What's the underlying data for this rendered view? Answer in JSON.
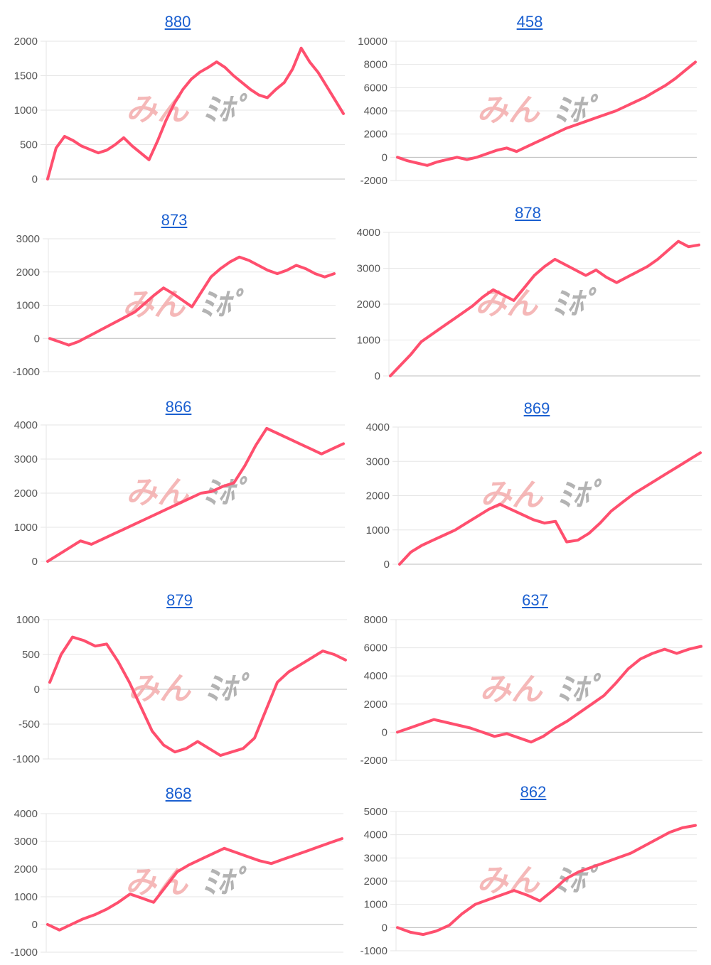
{
  "line_color": "#ff4f6e",
  "grid_color": "#e6e6e6",
  "zero_line_color": "#bdbdbd",
  "title_color": "#1a5fd0",
  "watermark": {
    "left_text": "みん",
    "right_text": "ﾐﾎﾟ",
    "left_color": "#f2a0a0",
    "right_color": "#9a9a9a"
  },
  "chart_data": [
    {
      "type": "line",
      "title": "880",
      "yticks": [
        0,
        500,
        1000,
        1500,
        2000
      ],
      "ylim": [
        0,
        2000
      ],
      "series": [
        {
          "values": [
            0,
            450,
            620,
            560,
            480,
            430,
            380,
            420,
            500,
            600,
            480,
            380,
            280,
            550,
            850,
            1100,
            1300,
            1450,
            1550,
            1620,
            1700,
            1620,
            1500,
            1400,
            1300,
            1220,
            1180,
            1300,
            1400,
            1600,
            1900,
            1700,
            1550,
            1350,
            1150,
            950
          ]
        }
      ]
    },
    {
      "type": "line",
      "title": "458",
      "yticks": [
        -2000,
        0,
        2000,
        4000,
        6000,
        8000,
        10000
      ],
      "ylim": [
        -2000,
        10000
      ],
      "series": [
        {
          "values": [
            0,
            -300,
            -500,
            -700,
            -400,
            -200,
            0,
            -200,
            0,
            300,
            600,
            800,
            500,
            900,
            1300,
            1700,
            2100,
            2500,
            2800,
            3100,
            3400,
            3700,
            4000,
            4400,
            4800,
            5200,
            5700,
            6200,
            6800,
            7500,
            8200
          ]
        }
      ]
    },
    {
      "type": "line",
      "title": "873",
      "yticks": [
        -1000,
        0,
        1000,
        2000,
        3000
      ],
      "ylim": [
        -1000,
        3000
      ],
      "series": [
        {
          "values": [
            0,
            -100,
            -200,
            -100,
            50,
            200,
            350,
            500,
            650,
            800,
            1050,
            1300,
            1520,
            1350,
            1150,
            950,
            1400,
            1850,
            2100,
            2300,
            2450,
            2350,
            2200,
            2050,
            1950,
            2050,
            2200,
            2100,
            1950,
            1850,
            1950
          ]
        }
      ]
    },
    {
      "type": "line",
      "title": "878",
      "yticks": [
        0,
        1000,
        2000,
        3000,
        4000
      ],
      "ylim": [
        0,
        4000
      ],
      "series": [
        {
          "values": [
            0,
            300,
            600,
            950,
            1150,
            1350,
            1550,
            1750,
            1950,
            2200,
            2400,
            2250,
            2100,
            2450,
            2800,
            3050,
            3250,
            3100,
            2950,
            2800,
            2950,
            2750,
            2600,
            2750,
            2900,
            3050,
            3250,
            3500,
            3750,
            3600,
            3650
          ]
        }
      ]
    },
    {
      "type": "line",
      "title": "866",
      "yticks": [
        0,
        1000,
        2000,
        3000,
        4000
      ],
      "ylim": [
        0,
        4000
      ],
      "series": [
        {
          "values": [
            0,
            200,
            400,
            600,
            500,
            650,
            800,
            950,
            1100,
            1250,
            1400,
            1550,
            1700,
            1850,
            2000,
            2050,
            2200,
            2300,
            2800,
            3400,
            3900,
            3750,
            3600,
            3450,
            3300,
            3150,
            3300,
            3450
          ]
        }
      ]
    },
    {
      "type": "line",
      "title": "869",
      "yticks": [
        0,
        1000,
        2000,
        3000,
        4000
      ],
      "ylim": [
        0,
        4000
      ],
      "series": [
        {
          "values": [
            0,
            350,
            550,
            700,
            850,
            1000,
            1200,
            1400,
            1600,
            1750,
            1600,
            1450,
            1300,
            1200,
            1250,
            650,
            700,
            900,
            1200,
            1550,
            1800,
            2050,
            2250,
            2450,
            2650,
            2850,
            3050,
            3250
          ]
        }
      ]
    },
    {
      "type": "line",
      "title": "879",
      "yticks": [
        -1000,
        -500,
        0,
        500,
        1000
      ],
      "ylim": [
        -1000,
        1000
      ],
      "series": [
        {
          "values": [
            100,
            500,
            750,
            700,
            620,
            650,
            400,
            100,
            -250,
            -600,
            -800,
            -900,
            -850,
            -750,
            -850,
            -950,
            -900,
            -850,
            -700,
            -300,
            100,
            250,
            350,
            450,
            550,
            500,
            420
          ]
        }
      ]
    },
    {
      "type": "line",
      "title": "637",
      "yticks": [
        -2000,
        0,
        2000,
        4000,
        6000,
        8000
      ],
      "ylim": [
        -2000,
        8000
      ],
      "series": [
        {
          "values": [
            0,
            300,
            600,
            900,
            700,
            500,
            300,
            0,
            -300,
            -100,
            -400,
            -700,
            -300,
            300,
            800,
            1400,
            2000,
            2600,
            3500,
            4500,
            5200,
            5600,
            5900,
            5600,
            5900,
            6100
          ]
        }
      ]
    },
    {
      "type": "line",
      "title": "868",
      "yticks": [
        -1000,
        0,
        1000,
        2000,
        3000,
        4000
      ],
      "ylim": [
        -1000,
        4000
      ],
      "series": [
        {
          "values": [
            0,
            -200,
            0,
            200,
            350,
            550,
            800,
            1100,
            950,
            800,
            1350,
            1900,
            2150,
            2350,
            2550,
            2750,
            2600,
            2450,
            2300,
            2200,
            2350,
            2500,
            2650,
            2800,
            2950,
            3100
          ]
        }
      ]
    },
    {
      "type": "line",
      "title": "862",
      "yticks": [
        -1000,
        0,
        1000,
        2000,
        3000,
        4000,
        5000
      ],
      "ylim": [
        -1000,
        5000
      ],
      "series": [
        {
          "values": [
            0,
            -200,
            -300,
            -150,
            100,
            600,
            1000,
            1200,
            1400,
            1600,
            1400,
            1150,
            1600,
            2100,
            2400,
            2600,
            2800,
            3000,
            3200,
            3500,
            3800,
            4100,
            4300,
            4400
          ]
        }
      ]
    }
  ]
}
